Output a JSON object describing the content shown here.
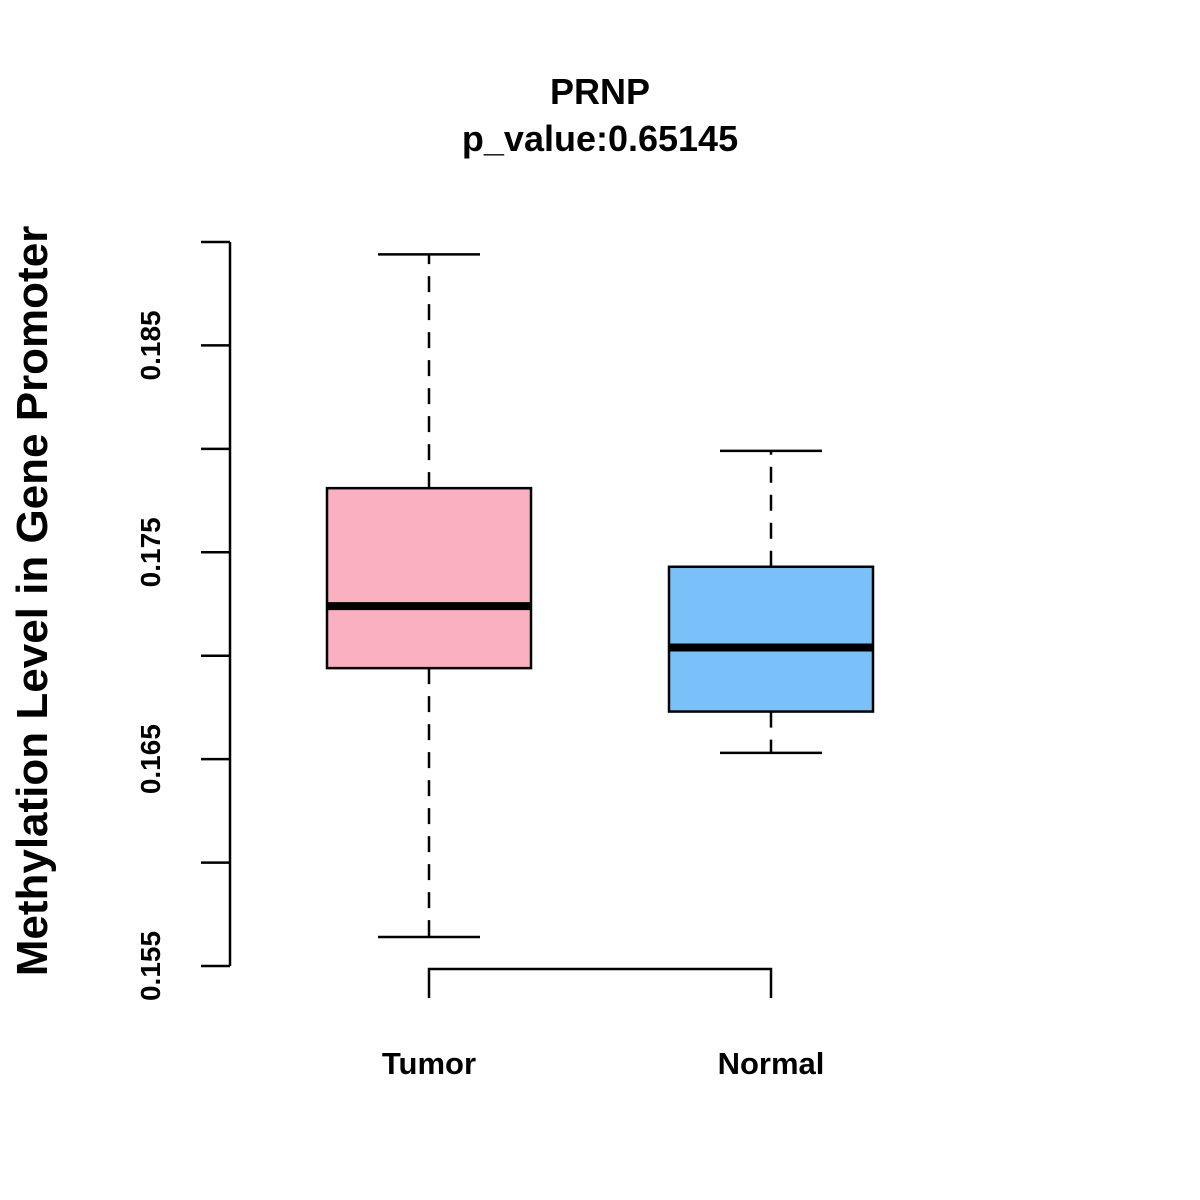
{
  "chart_data": {
    "type": "boxplot",
    "title": "PRNP",
    "subtitle": "p_value:0.65145",
    "xlabel": "",
    "ylabel": "Methylation Level in Gene Promoter",
    "ylim": [
      0.155,
      0.19
    ],
    "yticks": [
      0.155,
      0.16,
      0.165,
      0.17,
      0.175,
      0.18,
      0.185,
      0.19
    ],
    "ytick_labels": [
      "0.155",
      "",
      "0.165",
      "",
      "0.175",
      "",
      "0.185",
      ""
    ],
    "categories": [
      "Tumor",
      "Normal"
    ],
    "boxes": [
      {
        "name": "Tumor",
        "whisker_low": 0.1564,
        "q1": 0.1694,
        "median": 0.1724,
        "q3": 0.1781,
        "whisker_high": 0.1894,
        "color": "#FBB0C2"
      },
      {
        "name": "Normal",
        "whisker_low": 0.1653,
        "q1": 0.1673,
        "median": 0.1704,
        "q3": 0.1743,
        "whisker_high": 0.1799,
        "color": "#79C1F9"
      }
    ],
    "comparison_bracket": [
      "Tumor",
      "Normal"
    ],
    "grid": false,
    "legend": "none"
  }
}
